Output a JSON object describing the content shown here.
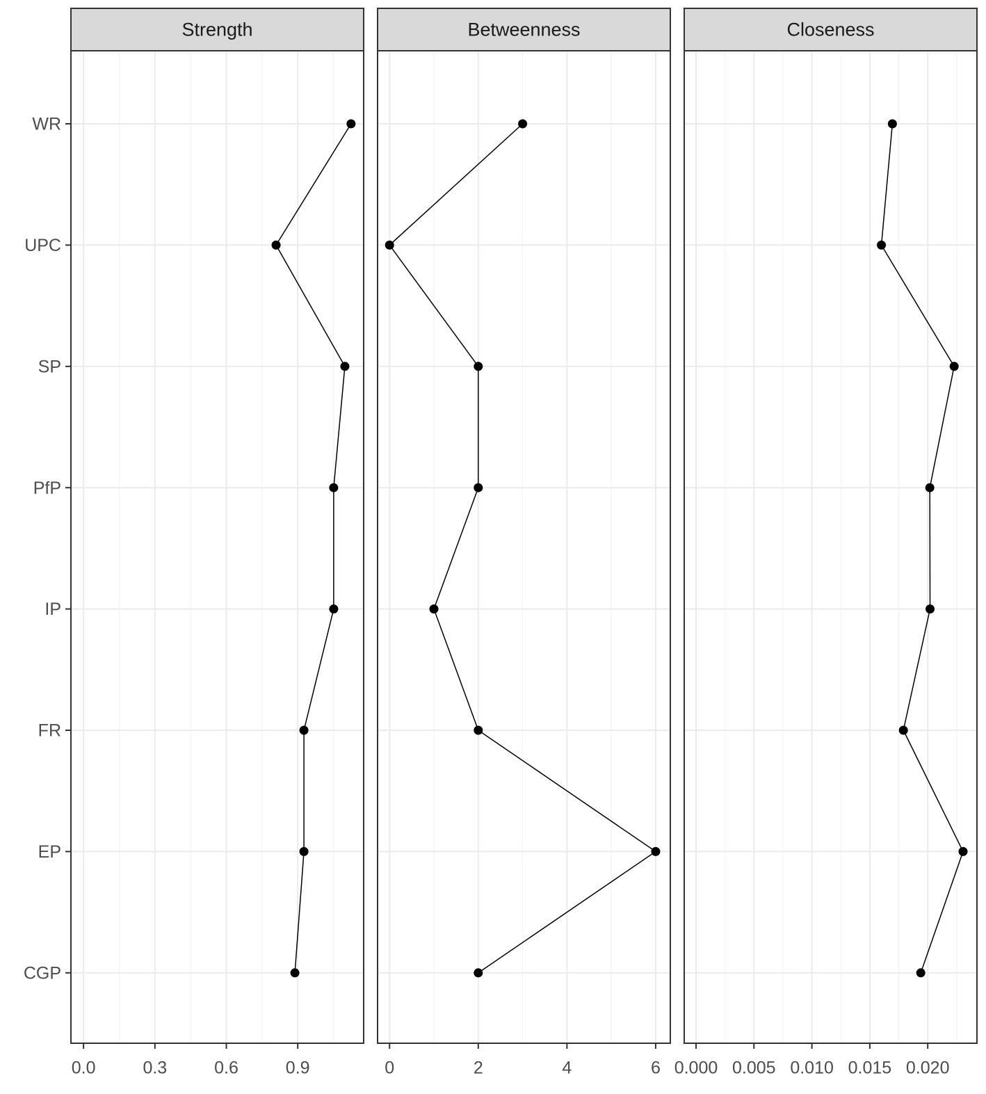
{
  "chart_data": [
    {
      "type": "line",
      "title": "Strength",
      "color": "#000000",
      "grid": true,
      "categories": [
        "WR",
        "UPC",
        "SP",
        "PfP",
        "IP",
        "FR",
        "EP",
        "CGP"
      ],
      "values": [
        1.124,
        0.809,
        1.098,
        1.051,
        1.051,
        0.926,
        0.926,
        0.888
      ],
      "xlim": [
        -0.053,
        1.177
      ],
      "xticks": [
        {
          "value": 0,
          "label": "0.0"
        },
        0.3,
        0.6,
        0.9
      ],
      "minor_xticks": [
        0.15,
        0.45,
        0.75,
        1.05
      ]
    },
    {
      "type": "line",
      "title": "Betweenness",
      "color": "#000000",
      "grid": true,
      "categories": [
        "WR",
        "UPC",
        "SP",
        "PfP",
        "IP",
        "FR",
        "EP",
        "CGP"
      ],
      "values": [
        3,
        0,
        2,
        2,
        1,
        2,
        6,
        2
      ],
      "xlim": [
        -0.27,
        6.33
      ],
      "xticks": [
        0,
        2,
        4,
        6
      ],
      "minor_xticks": [
        1,
        3,
        5
      ]
    },
    {
      "type": "line",
      "title": "Closeness",
      "color": "#000000",
      "grid": true,
      "categories": [
        "WR",
        "UPC",
        "SP",
        "PfP",
        "IP",
        "FR",
        "EP",
        "CGP"
      ],
      "values": [
        0.01695,
        0.016,
        0.02228,
        0.02018,
        0.0202,
        0.0179,
        0.02305,
        0.0194
      ],
      "xlim": [
        -0.00102,
        0.02425
      ],
      "xticks": [
        {
          "value": 0,
          "label": "0.000"
        },
        0.005,
        {
          "value": 0.01,
          "label": "0.010"
        },
        0.015,
        {
          "value": 0.02,
          "label": "0.020"
        }
      ],
      "minor_xticks": [
        0.0025,
        0.0075,
        0.0125,
        0.0175,
        0.0225
      ]
    }
  ]
}
